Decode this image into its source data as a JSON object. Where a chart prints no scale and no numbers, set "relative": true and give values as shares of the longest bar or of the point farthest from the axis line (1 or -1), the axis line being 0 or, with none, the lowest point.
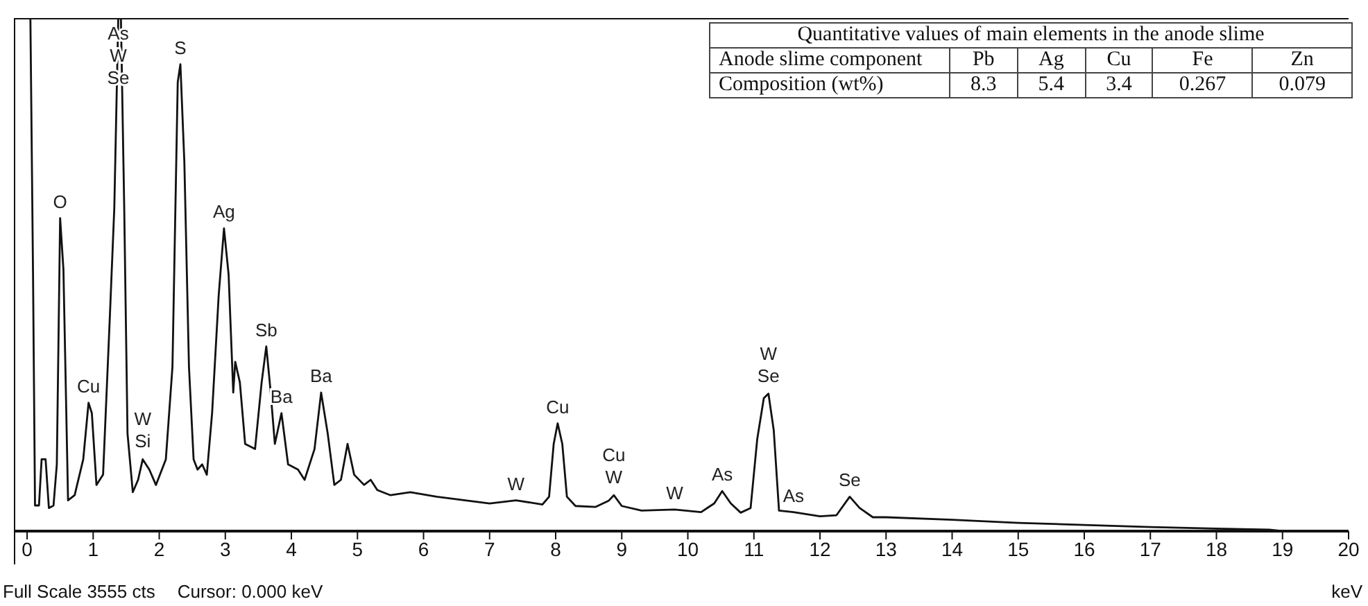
{
  "chart_data": [
    {
      "type": "line",
      "relative": true,
      "xlabel": "keV",
      "xlim": [
        -0.2,
        20
      ],
      "xticks": [
        0,
        1,
        2,
        3,
        4,
        5,
        6,
        7,
        8,
        9,
        10,
        11,
        12,
        13,
        14,
        15,
        16,
        17,
        18,
        19,
        20
      ],
      "x": [
        0,
        0.05,
        0.09,
        0.12,
        0.18,
        0.22,
        0.28,
        0.33,
        0.4,
        0.45,
        0.5,
        0.55,
        0.62,
        0.72,
        0.85,
        0.93,
        0.98,
        1.05,
        1.15,
        1.25,
        1.32,
        1.38,
        1.42,
        1.47,
        1.52,
        1.6,
        1.68,
        1.75,
        1.85,
        1.95,
        2.1,
        2.2,
        2.28,
        2.32,
        2.38,
        2.45,
        2.52,
        2.58,
        2.65,
        2.72,
        2.8,
        2.9,
        2.98,
        3.05,
        3.12,
        3.15,
        3.22,
        3.3,
        3.45,
        3.55,
        3.62,
        3.68,
        3.75,
        3.85,
        3.95,
        4.1,
        4.2,
        4.35,
        4.45,
        4.55,
        4.65,
        4.75,
        4.85,
        4.95,
        5.1,
        5.2,
        5.3,
        5.5,
        5.8,
        6.2,
        7.0,
        7.4,
        7.8,
        7.9,
        7.97,
        8.03,
        8.1,
        8.17,
        8.3,
        8.6,
        8.8,
        8.88,
        9.0,
        9.3,
        9.8,
        10.2,
        10.4,
        10.52,
        10.65,
        10.8,
        10.95,
        11.05,
        11.15,
        11.22,
        11.3,
        11.38,
        11.6,
        12.0,
        12.25,
        12.45,
        12.6,
        12.8,
        13.0,
        14,
        15,
        16,
        17,
        18,
        18.8,
        19,
        20
      ],
      "series": [
        {
          "color": "#111111",
          "values": [
            1,
            1,
            0.5,
            0.05,
            0.05,
            0.14,
            0.14,
            0.045,
            0.05,
            0.13,
            0.61,
            0.51,
            0.06,
            0.07,
            0.14,
            0.25,
            0.23,
            0.09,
            0.11,
            0.41,
            0.63,
            1,
            1,
            0.63,
            0.19,
            0.076,
            0.1,
            0.14,
            0.12,
            0.09,
            0.14,
            0.32,
            0.875,
            0.91,
            0.72,
            0.32,
            0.14,
            0.12,
            0.13,
            0.11,
            0.23,
            0.46,
            0.59,
            0.5,
            0.27,
            0.33,
            0.29,
            0.17,
            0.16,
            0.29,
            0.36,
            0.28,
            0.17,
            0.23,
            0.13,
            0.12,
            0.1,
            0.16,
            0.27,
            0.19,
            0.09,
            0.1,
            0.17,
            0.11,
            0.09,
            0.1,
            0.08,
            0.07,
            0.076,
            0.067,
            0.054,
            0.06,
            0.052,
            0.067,
            0.17,
            0.21,
            0.17,
            0.067,
            0.049,
            0.047,
            0.059,
            0.07,
            0.049,
            0.04,
            0.042,
            0.037,
            0.054,
            0.078,
            0.054,
            0.036,
            0.045,
            0.179,
            0.259,
            0.268,
            0.197,
            0.04,
            0.037,
            0.029,
            0.031,
            0.067,
            0.045,
            0.027,
            0.027,
            0.022,
            0.016,
            0.012,
            0.008,
            0.005,
            0.003,
            0,
            0
          ]
        }
      ],
      "annotations": [
        {
          "text": "O",
          "x": 0.5,
          "y": 0.61
        },
        {
          "text": "Cu",
          "x": 0.93,
          "y": 0.25
        },
        {
          "text": "As",
          "x": 1.38,
          "y": 1
        },
        {
          "text": "W",
          "x": 1.38,
          "y": 1
        },
        {
          "text": "Se",
          "x": 1.38,
          "y": 1
        },
        {
          "text": "W",
          "x": 1.75,
          "y": 0.14
        },
        {
          "text": "Si",
          "x": 1.75,
          "y": 0.14
        },
        {
          "text": "S",
          "x": 2.32,
          "y": 0.91
        },
        {
          "text": "Ag",
          "x": 2.98,
          "y": 0.59
        },
        {
          "text": "Sb",
          "x": 3.62,
          "y": 0.36
        },
        {
          "text": "Ba",
          "x": 3.85,
          "y": 0.23
        },
        {
          "text": "Ba",
          "x": 4.45,
          "y": 0.27
        },
        {
          "text": "W",
          "x": 7.4,
          "y": 0.06
        },
        {
          "text": "Cu",
          "x": 8.03,
          "y": 0.21
        },
        {
          "text": "Cu",
          "x": 8.88,
          "y": 0.07
        },
        {
          "text": "W",
          "x": 8.88,
          "y": 0.07
        },
        {
          "text": "W",
          "x": 9.8,
          "y": 0.042
        },
        {
          "text": "As",
          "x": 10.52,
          "y": 0.078
        },
        {
          "text": "W",
          "x": 11.22,
          "y": 0.268
        },
        {
          "text": "Se",
          "x": 11.22,
          "y": 0.268
        },
        {
          "text": "As",
          "x": 11.6,
          "y": 0.037
        },
        {
          "text": "Se",
          "x": 12.45,
          "y": 0.067
        },
        "Full Scale 3555 cts",
        "Cursor: 0.000 keV"
      ]
    },
    {
      "type": "other",
      "title": "Quantitative values of main elements in the anode slime",
      "categories": [
        "Pb",
        "Ag",
        "Cu",
        "Fe",
        "Zn"
      ],
      "values": [
        8.3,
        5.4,
        3.4,
        0.267,
        0.079
      ],
      "data_labels": true,
      "annotations": [
        "Anode slime component",
        "Composition (wt%)"
      ]
    }
  ]
}
